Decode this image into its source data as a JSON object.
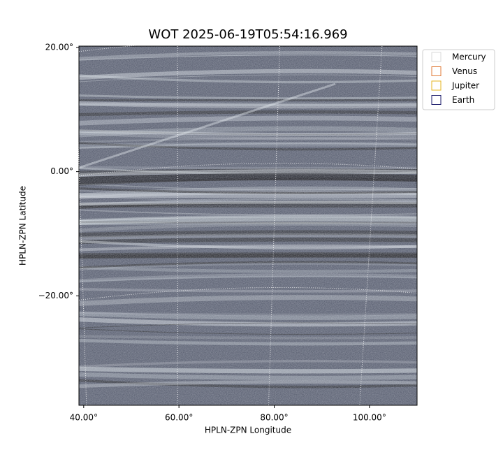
{
  "chart_data": {
    "type": "image",
    "title": "WOT 2025-06-19T05:54:16.969",
    "x_label": "HPLN-ZPN Longitude",
    "y_label": "HPLN-ZPN Latitude",
    "xlim": [
      39,
      110
    ],
    "ylim": [
      -37.6,
      20.2
    ],
    "xticks": [
      {
        "value": 40,
        "label": "40.00°"
      },
      {
        "value": 60,
        "label": "60.00°"
      },
      {
        "value": 80,
        "label": "80.00°"
      },
      {
        "value": 100,
        "label": "100.00°"
      }
    ],
    "yticks": [
      {
        "value": -20,
        "label": "−20.00°"
      },
      {
        "value": 0,
        "label": "0.00°"
      },
      {
        "value": 20,
        "label": "20.00°"
      }
    ],
    "grid": true,
    "legend": [
      {
        "name": "Mercury",
        "color": "#d9d9d9"
      },
      {
        "name": "Venus",
        "color": "#e07b39"
      },
      {
        "name": "Jupiter",
        "color": "#e6b422"
      },
      {
        "name": "Earth",
        "color": "#1c1c6b"
      }
    ]
  }
}
